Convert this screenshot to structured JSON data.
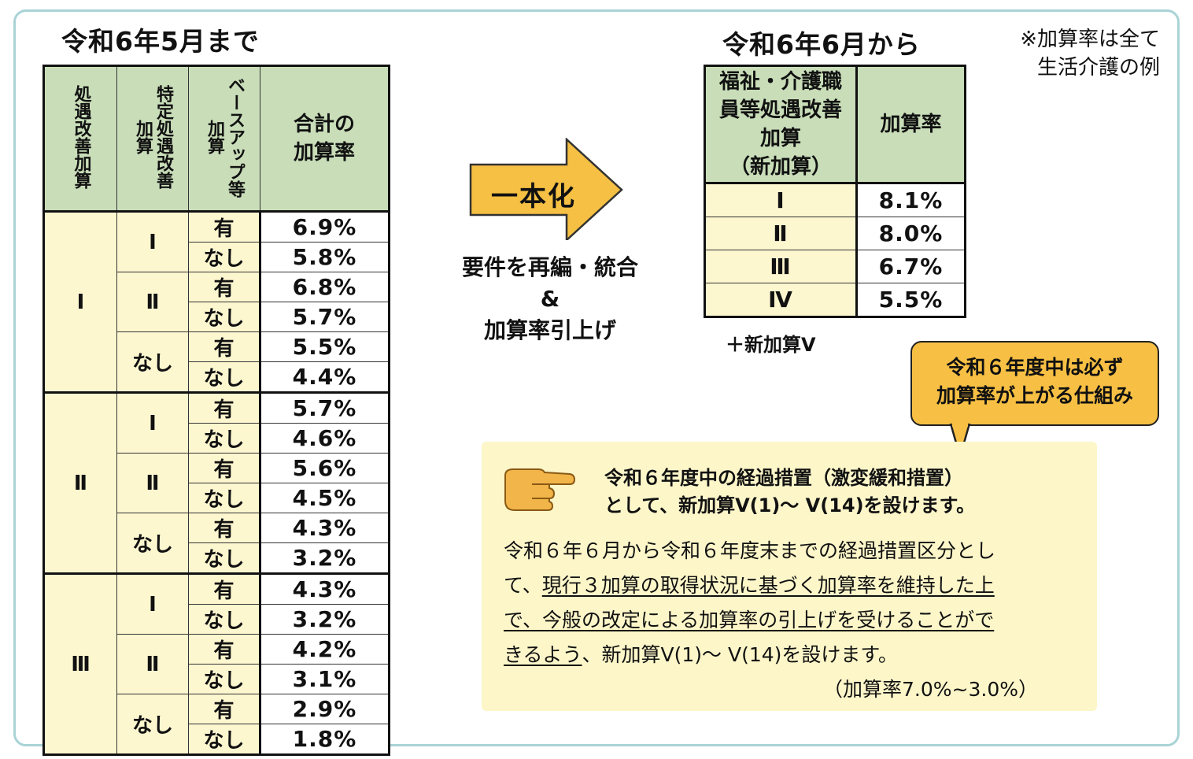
{
  "left": {
    "title": "令和6年5月まで",
    "headers": [
      "処遇改善加算",
      "特定処遇改善加算",
      "ベースアップ等加算",
      "合計の加算率"
    ],
    "groups": [
      {
        "label": "Ⅰ",
        "subgroups": [
          {
            "label": "Ⅰ",
            "rows": [
              {
                "base": "有",
                "rate": "6.9%"
              },
              {
                "base": "なし",
                "rate": "5.8%"
              }
            ]
          },
          {
            "label": "Ⅱ",
            "rows": [
              {
                "base": "有",
                "rate": "6.8%"
              },
              {
                "base": "なし",
                "rate": "5.7%"
              }
            ]
          },
          {
            "label": "なし",
            "rows": [
              {
                "base": "有",
                "rate": "5.5%"
              },
              {
                "base": "なし",
                "rate": "4.4%"
              }
            ]
          }
        ]
      },
      {
        "label": "Ⅱ",
        "subgroups": [
          {
            "label": "Ⅰ",
            "rows": [
              {
                "base": "有",
                "rate": "5.7%"
              },
              {
                "base": "なし",
                "rate": "4.6%"
              }
            ]
          },
          {
            "label": "Ⅱ",
            "rows": [
              {
                "base": "有",
                "rate": "5.6%"
              },
              {
                "base": "なし",
                "rate": "4.5%"
              }
            ]
          },
          {
            "label": "なし",
            "rows": [
              {
                "base": "有",
                "rate": "4.3%"
              },
              {
                "base": "なし",
                "rate": "3.2%"
              }
            ]
          }
        ]
      },
      {
        "label": "Ⅲ",
        "subgroups": [
          {
            "label": "Ⅰ",
            "rows": [
              {
                "base": "有",
                "rate": "4.3%"
              },
              {
                "base": "なし",
                "rate": "3.2%"
              }
            ]
          },
          {
            "label": "Ⅱ",
            "rows": [
              {
                "base": "有",
                "rate": "4.2%"
              },
              {
                "base": "なし",
                "rate": "3.1%"
              }
            ]
          },
          {
            "label": "なし",
            "rows": [
              {
                "base": "有",
                "rate": "2.9%"
              },
              {
                "base": "なし",
                "rate": "1.8%"
              }
            ]
          }
        ]
      }
    ]
  },
  "middle": {
    "arrow_label": "一本化",
    "text_line1": "要件を再編・統合",
    "text_line2": "&",
    "text_line3": "加算率引上げ"
  },
  "right": {
    "title": "令和6年6月から",
    "note_line1": "※加算率は全て",
    "note_line2": "生活介護の例",
    "header_col1_lines": [
      "福祉・介護職",
      "員等処遇改善",
      "加算",
      "（新加算）"
    ],
    "header_col2": "加算率",
    "rows": [
      {
        "label": "Ⅰ",
        "rate": "8.1%"
      },
      {
        "label": "Ⅱ",
        "rate": "8.0%"
      },
      {
        "label": "Ⅲ",
        "rate": "6.7%"
      },
      {
        "label": "Ⅳ",
        "rate": "5.5%"
      }
    ],
    "plus_new": "＋新加算Ⅴ"
  },
  "callout": {
    "line1": "令和６年度中は必ず",
    "line2": "加算率が上がる仕組み"
  },
  "info": {
    "hand_icon": "pointing-hand-icon",
    "head_line1": "令和６年度中の経過措置（激変緩和措置）",
    "head_line2": "として、新加算Ⅴ(1)～ Ⅴ(14)を設けます。",
    "body_plain1": "令和６年６月から令和６年度末までの経過措置区分とし",
    "body_plain2": "て、",
    "body_under1": "現行３加算の取得状況に基づく加算率を維持した上",
    "body_under2": "で、今般の改定による加算率の引上げを受けることがで",
    "body_under3": "きるよう",
    "body_plain3": "、新加算Ⅴ(1)～ Ⅴ(14)を設けます。",
    "range": "（加算率7.0%~3.0%）"
  },
  "colors": {
    "header_green": "#c8ddb8",
    "cell_yellow": "#fdf7d0",
    "arrow_orange": "#f5c043",
    "callout_orange": "#f7c044",
    "info_bg": "#fcf6c9",
    "frame": "#a9d3d6"
  }
}
